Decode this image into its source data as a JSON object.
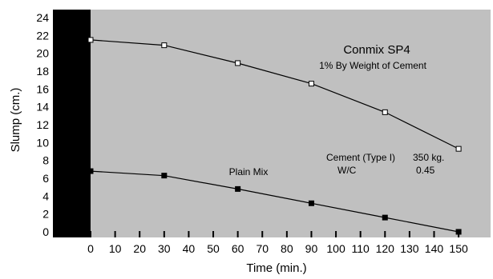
{
  "chart_data": {
    "type": "line",
    "xlabel": "Time (min.)",
    "ylabel": "Slump (cm.)",
    "xlim": [
      0,
      155
    ],
    "ylim": [
      0,
      24
    ],
    "x_ticks": [
      0,
      10,
      20,
      30,
      40,
      50,
      60,
      70,
      80,
      90,
      100,
      110,
      120,
      130,
      140,
      150
    ],
    "y_ticks": [
      0,
      2,
      4,
      6,
      8,
      10,
      12,
      14,
      16,
      18,
      20,
      22,
      24
    ],
    "grid": false,
    "series": [
      {
        "name": "Conmix SP4",
        "marker": "open-square",
        "x": [
          0,
          30,
          60,
          90,
          120,
          150
        ],
        "y": [
          21.5,
          20.9,
          18.9,
          16.6,
          13.4,
          9.3
        ]
      },
      {
        "name": "Plain Mix",
        "marker": "filled-square",
        "x": [
          0,
          30,
          60,
          90,
          120,
          150
        ],
        "y": [
          6.8,
          6.3,
          4.8,
          3.2,
          1.6,
          0
        ]
      }
    ],
    "annotations": {
      "sp4_title": "Conmix SP4",
      "sp4_subtitle": "1% By Weight of Cement",
      "plain_label": "Plain Mix",
      "cement_label": "Cement (Type I)",
      "cement_value": "350 kg.",
      "wc_label": "W/C",
      "wc_value": "0.45"
    },
    "colors": {
      "plot_background": "#c0c0c0",
      "left_band": "#000000",
      "line": "#000000"
    }
  }
}
